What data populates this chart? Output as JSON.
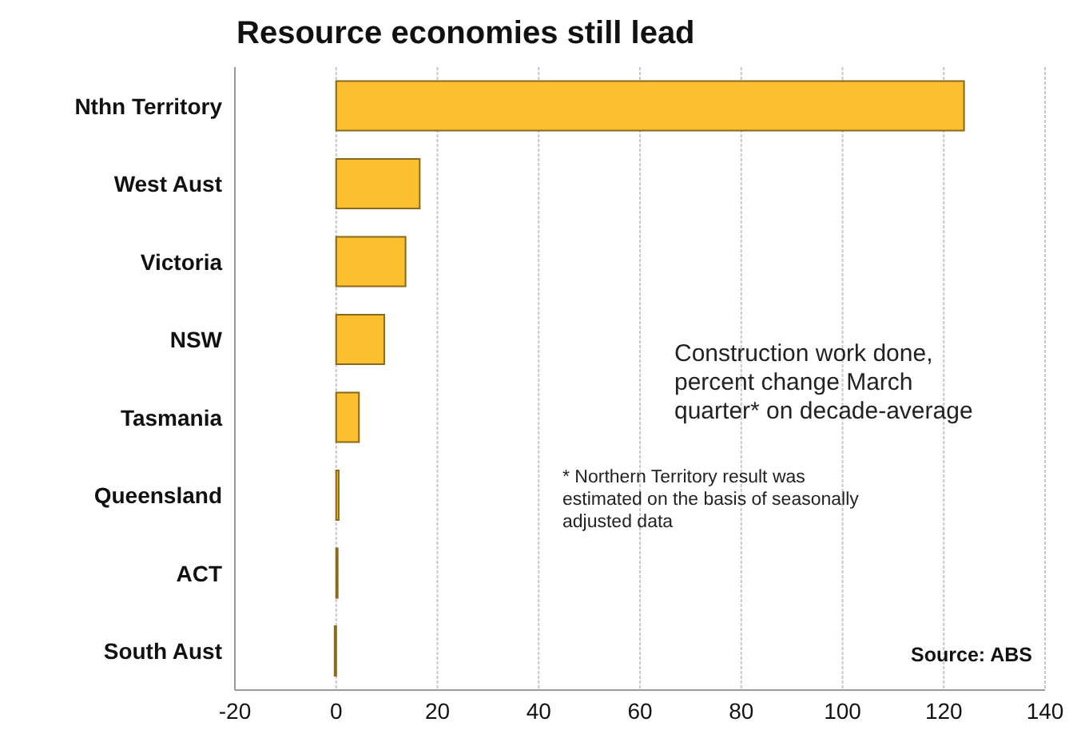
{
  "chart_data": {
    "type": "bar",
    "orientation": "horizontal",
    "title": "Resource economies still lead",
    "categories": [
      "Nthn Territory",
      "West Aust",
      "Victoria",
      "NSW",
      "Tasmania",
      "Queensland",
      "ACT",
      "South Aust"
    ],
    "values": [
      124,
      16.5,
      13.7,
      9.5,
      4.5,
      0.5,
      0.3,
      -0.3
    ],
    "color": "#fbbf2f",
    "xlim": [
      -20,
      140
    ],
    "xticks": [
      -20,
      0,
      20,
      40,
      60,
      80,
      100,
      120,
      140
    ],
    "grid": "x",
    "annotations": [
      "Construction work done, percent change March quarter* on decade-average",
      "* Northern Territory result was estimated on the basis of seasonally adjusted data",
      "Source: ABS"
    ]
  }
}
